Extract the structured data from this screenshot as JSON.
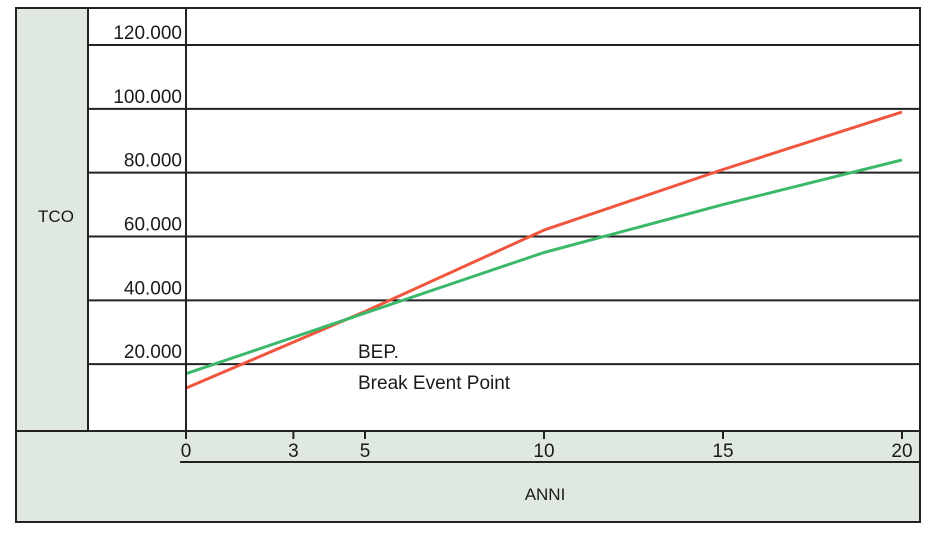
{
  "colors": {
    "panel": "#dfe9e2",
    "frame": "#222222",
    "red_series": "#f0553e",
    "green_series": "#3cb86b"
  },
  "chart_data": {
    "type": "line",
    "title": "",
    "xlabel": "ANNI",
    "ylabel": "TCO",
    "xlim": [
      0,
      20
    ],
    "ylim": [
      0,
      130000
    ],
    "x_ticks": [
      0,
      3,
      5,
      10,
      15,
      20
    ],
    "y_ticks": [
      20000,
      40000,
      60000,
      80000,
      100000,
      120000
    ],
    "x_tick_labels": [
      "0",
      "3",
      "5",
      "10",
      "15",
      "20"
    ],
    "y_tick_labels": [
      "20.000",
      "40.000",
      "60.000",
      "80.000",
      "100.000",
      "120.000"
    ],
    "grid": "horizontal",
    "series": [
      {
        "color": "#f0553e",
        "points": [
          [
            0,
            12500
          ],
          [
            5,
            36500
          ],
          [
            10,
            62000
          ],
          [
            15,
            81000
          ],
          [
            20,
            99000
          ]
        ]
      },
      {
        "color": "#3cb86b",
        "points": [
          [
            0,
            17000
          ],
          [
            5,
            36000
          ],
          [
            10,
            55000
          ],
          [
            15,
            70000
          ],
          [
            20,
            84000
          ]
        ]
      }
    ],
    "annotations": [
      "BEP.",
      "Break Event Point"
    ]
  }
}
